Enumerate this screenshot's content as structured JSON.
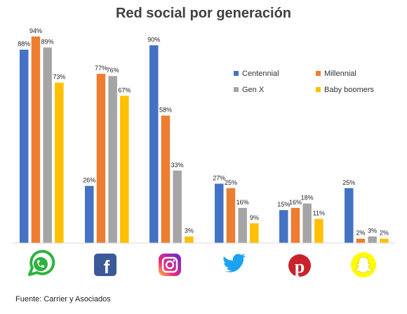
{
  "title": "Red social por generación",
  "source": "Fuente: Carrier y Asociados",
  "chart_data": {
    "type": "bar",
    "title": "Red social por generación",
    "categories": [
      "WhatsApp",
      "Facebook",
      "Instagram",
      "Twitter",
      "Pinterest",
      "Snapchat"
    ],
    "category_icons": [
      "whatsapp-icon",
      "facebook-icon",
      "instagram-icon",
      "twitter-icon",
      "pinterest-icon",
      "snapchat-icon"
    ],
    "ylim": [
      0,
      100
    ],
    "grid": false,
    "legend": "top-right",
    "series": [
      {
        "name": "Centennial",
        "color": "#4472C4",
        "values": [
          88,
          26,
          90,
          27,
          15,
          25
        ],
        "labels": [
          "88%",
          "26%",
          "90%",
          "27%",
          "15%",
          "25%"
        ]
      },
      {
        "name": "Millennial",
        "color": "#ED7D31",
        "values": [
          94,
          77,
          58,
          25,
          16,
          2
        ],
        "labels": [
          "94%",
          "77%",
          "58%",
          "25%",
          "16%",
          "2%"
        ]
      },
      {
        "name": "Gen X",
        "color": "#A5A5A5",
        "values": [
          89,
          76,
          33,
          16,
          18,
          3
        ],
        "labels": [
          "89%",
          "76%",
          "33%",
          "16%",
          "18%",
          "3%"
        ]
      },
      {
        "name": "Baby boomers",
        "color": "#FFC000",
        "values": [
          73,
          67,
          3,
          9,
          11,
          2
        ],
        "labels": [
          "73%",
          "67%",
          "3%",
          "9%",
          "11%",
          "2%"
        ]
      }
    ]
  }
}
